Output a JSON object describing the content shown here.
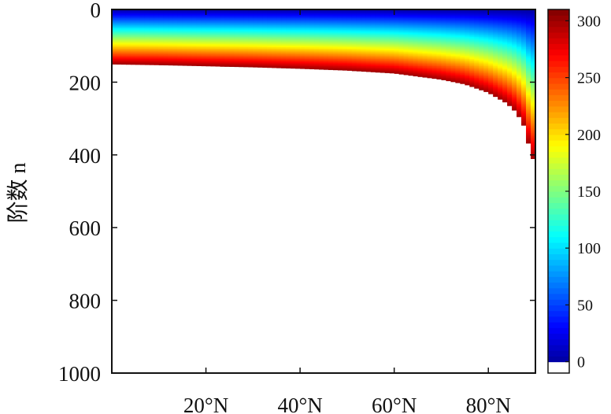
{
  "chart_data": {
    "type": "heatmap",
    "title": "",
    "xlabel": "",
    "ylabel": "阶数 n",
    "x_tick_labels": [
      "20°N",
      "40°N",
      "60°N",
      "80°N"
    ],
    "x_tick_values": [
      20,
      40,
      60,
      80
    ],
    "xlim": [
      0,
      90
    ],
    "y_tick_labels": [
      "0",
      "200",
      "400",
      "600",
      "800",
      "1000"
    ],
    "y_tick_values": [
      0,
      200,
      400,
      600,
      800,
      1000
    ],
    "ylim": [
      0,
      1000
    ],
    "y_reversed": true,
    "colorbar": {
      "tick_labels": [
        "0",
        "50",
        "100",
        "150",
        "200",
        "250",
        "300"
      ],
      "tick_values": [
        0,
        50,
        100,
        150,
        200,
        250,
        300
      ],
      "range": [
        -10,
        310
      ],
      "colormap": "jet",
      "colors": [
        "#00008f",
        "#0000ff",
        "#00ffff",
        "#ffff00",
        "#ff0000",
        "#800000"
      ]
    },
    "boundary": {
      "description_free": true,
      "latitude": [
        0,
        10,
        20,
        30,
        40,
        50,
        60,
        70,
        75,
        80,
        84,
        86,
        88,
        89,
        90
      ],
      "max_degree": [
        150,
        152,
        155,
        158,
        162,
        167,
        175,
        192,
        205,
        228,
        258,
        283,
        330,
        405,
        415
      ]
    }
  }
}
